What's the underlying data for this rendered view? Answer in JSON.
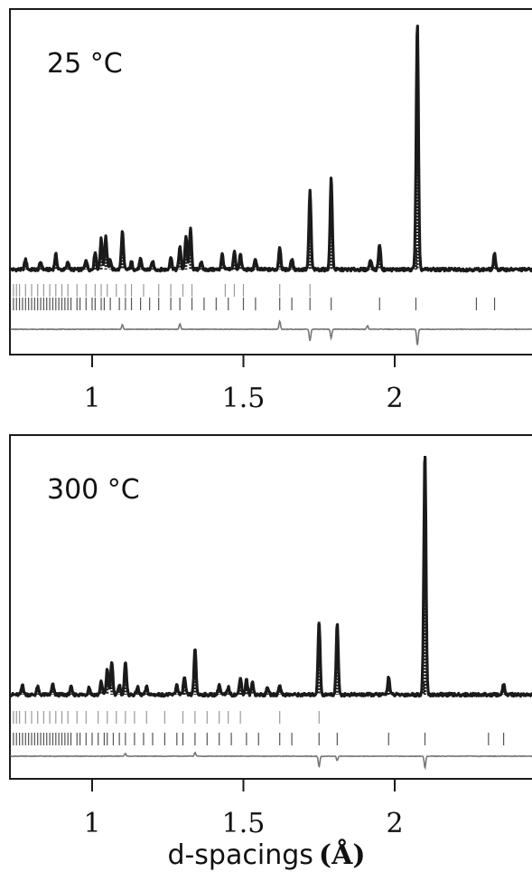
{
  "chart_data": [
    {
      "type": "line",
      "panel_label": "25 °C",
      "x_range": [
        0.73,
        2.47
      ],
      "xticks": [
        1,
        1.5,
        2
      ],
      "tick_labels": [
        "1",
        "1.5",
        "2"
      ],
      "baseline": 0.05,
      "peaks": [
        {
          "x": 0.78,
          "y": 0.09
        },
        {
          "x": 0.83,
          "y": 0.08
        },
        {
          "x": 0.88,
          "y": 0.11
        },
        {
          "x": 0.92,
          "y": 0.08
        },
        {
          "x": 0.98,
          "y": 0.09
        },
        {
          "x": 1.01,
          "y": 0.12
        },
        {
          "x": 1.03,
          "y": 0.17
        },
        {
          "x": 1.045,
          "y": 0.18
        },
        {
          "x": 1.06,
          "y": 0.09
        },
        {
          "x": 1.1,
          "y": 0.2
        },
        {
          "x": 1.13,
          "y": 0.08
        },
        {
          "x": 1.16,
          "y": 0.09
        },
        {
          "x": 1.2,
          "y": 0.08
        },
        {
          "x": 1.26,
          "y": 0.1
        },
        {
          "x": 1.29,
          "y": 0.14
        },
        {
          "x": 1.31,
          "y": 0.18
        },
        {
          "x": 1.325,
          "y": 0.21
        },
        {
          "x": 1.36,
          "y": 0.08
        },
        {
          "x": 1.43,
          "y": 0.11
        },
        {
          "x": 1.47,
          "y": 0.12
        },
        {
          "x": 1.49,
          "y": 0.11
        },
        {
          "x": 1.54,
          "y": 0.09
        },
        {
          "x": 1.62,
          "y": 0.14
        },
        {
          "x": 1.66,
          "y": 0.09
        },
        {
          "x": 1.72,
          "y": 0.36
        },
        {
          "x": 1.79,
          "y": 0.41
        },
        {
          "x": 1.92,
          "y": 0.09
        },
        {
          "x": 1.95,
          "y": 0.15
        },
        {
          "x": 2.07,
          "y": 0.13
        },
        {
          "x": 2.075,
          "y": 1.0
        },
        {
          "x": 2.33,
          "y": 0.11
        }
      ],
      "reflection_rows": [
        [
          0.74,
          0.75,
          0.76,
          0.78,
          0.8,
          0.82,
          0.84,
          0.86,
          0.88,
          0.9,
          0.92,
          0.95,
          0.98,
          1.01,
          1.03,
          1.05,
          1.08,
          1.11,
          1.13,
          1.17,
          1.22,
          1.26,
          1.3,
          1.33,
          1.44,
          1.47,
          1.5,
          1.62,
          1.72
        ],
        [
          0.74,
          0.75,
          0.76,
          0.77,
          0.78,
          0.79,
          0.8,
          0.81,
          0.82,
          0.83,
          0.84,
          0.85,
          0.86,
          0.87,
          0.88,
          0.89,
          0.9,
          0.91,
          0.92,
          0.93,
          0.95,
          0.96,
          0.98,
          1.0,
          1.01,
          1.03,
          1.04,
          1.06,
          1.09,
          1.11,
          1.13,
          1.16,
          1.19,
          1.22,
          1.26,
          1.29,
          1.33,
          1.37,
          1.41,
          1.45,
          1.5,
          1.54,
          1.62,
          1.66,
          1.72,
          1.79,
          1.95,
          2.07,
          2.27,
          2.33
        ]
      ],
      "difference_features": [
        {
          "x": 1.1,
          "d": 0.05
        },
        {
          "x": 1.29,
          "d": 0.06
        },
        {
          "x": 1.62,
          "d": 0.09
        },
        {
          "x": 1.72,
          "d": -0.13
        },
        {
          "x": 1.79,
          "d": -0.1
        },
        {
          "x": 1.91,
          "d": 0.04
        },
        {
          "x": 2.075,
          "d": -0.18
        }
      ]
    },
    {
      "type": "line",
      "panel_label": "300 °C",
      "x_range": [
        0.73,
        2.47
      ],
      "xticks": [
        1,
        1.5,
        2
      ],
      "tick_labels": [
        "1",
        "1.5",
        "2"
      ],
      "xlabel": "d-spacings",
      "xlabel_unit": "(Å)",
      "baseline": 0.05,
      "peaks": [
        {
          "x": 0.77,
          "y": 0.09
        },
        {
          "x": 0.82,
          "y": 0.08
        },
        {
          "x": 0.87,
          "y": 0.09
        },
        {
          "x": 0.93,
          "y": 0.08
        },
        {
          "x": 0.99,
          "y": 0.08
        },
        {
          "x": 1.03,
          "y": 0.1
        },
        {
          "x": 1.05,
          "y": 0.15
        },
        {
          "x": 1.065,
          "y": 0.18
        },
        {
          "x": 1.09,
          "y": 0.09
        },
        {
          "x": 1.11,
          "y": 0.18
        },
        {
          "x": 1.15,
          "y": 0.08
        },
        {
          "x": 1.18,
          "y": 0.08
        },
        {
          "x": 1.28,
          "y": 0.09
        },
        {
          "x": 1.305,
          "y": 0.12
        },
        {
          "x": 1.34,
          "y": 0.23
        },
        {
          "x": 1.42,
          "y": 0.09
        },
        {
          "x": 1.45,
          "y": 0.08
        },
        {
          "x": 1.49,
          "y": 0.12
        },
        {
          "x": 1.51,
          "y": 0.11
        },
        {
          "x": 1.53,
          "y": 0.1
        },
        {
          "x": 1.58,
          "y": 0.08
        },
        {
          "x": 1.62,
          "y": 0.09
        },
        {
          "x": 1.75,
          "y": 0.34
        },
        {
          "x": 1.81,
          "y": 0.33
        },
        {
          "x": 1.98,
          "y": 0.12
        },
        {
          "x": 2.095,
          "y": 0.1
        },
        {
          "x": 2.1,
          "y": 1.0
        },
        {
          "x": 2.36,
          "y": 0.09
        }
      ],
      "reflection_rows": [
        [
          0.74,
          0.75,
          0.76,
          0.78,
          0.8,
          0.82,
          0.84,
          0.86,
          0.88,
          0.9,
          0.92,
          0.95,
          0.98,
          1.02,
          1.05,
          1.08,
          1.11,
          1.14,
          1.18,
          1.24,
          1.3,
          1.34,
          1.38,
          1.42,
          1.45,
          1.49,
          1.62,
          1.75
        ],
        [
          0.74,
          0.75,
          0.76,
          0.77,
          0.78,
          0.79,
          0.8,
          0.81,
          0.82,
          0.83,
          0.84,
          0.85,
          0.86,
          0.87,
          0.88,
          0.89,
          0.9,
          0.91,
          0.92,
          0.93,
          0.95,
          0.96,
          0.98,
          1.0,
          1.02,
          1.04,
          1.05,
          1.07,
          1.09,
          1.11,
          1.14,
          1.17,
          1.2,
          1.24,
          1.28,
          1.3,
          1.34,
          1.38,
          1.42,
          1.46,
          1.51,
          1.55,
          1.62,
          1.66,
          1.75,
          1.81,
          1.98,
          2.1,
          2.31,
          2.36
        ]
      ],
      "difference_features": [
        {
          "x": 1.11,
          "d": 0.03
        },
        {
          "x": 1.34,
          "d": 0.04
        },
        {
          "x": 1.75,
          "d": -0.12
        },
        {
          "x": 1.81,
          "d": -0.05
        },
        {
          "x": 2.1,
          "d": -0.13
        }
      ]
    }
  ],
  "colors": {
    "observed": "#1a1a1a",
    "reflections_row1": "#9a9a9a",
    "reflections_row2": "#555555",
    "difference": "#777777",
    "frame": "#1a1a1a"
  }
}
